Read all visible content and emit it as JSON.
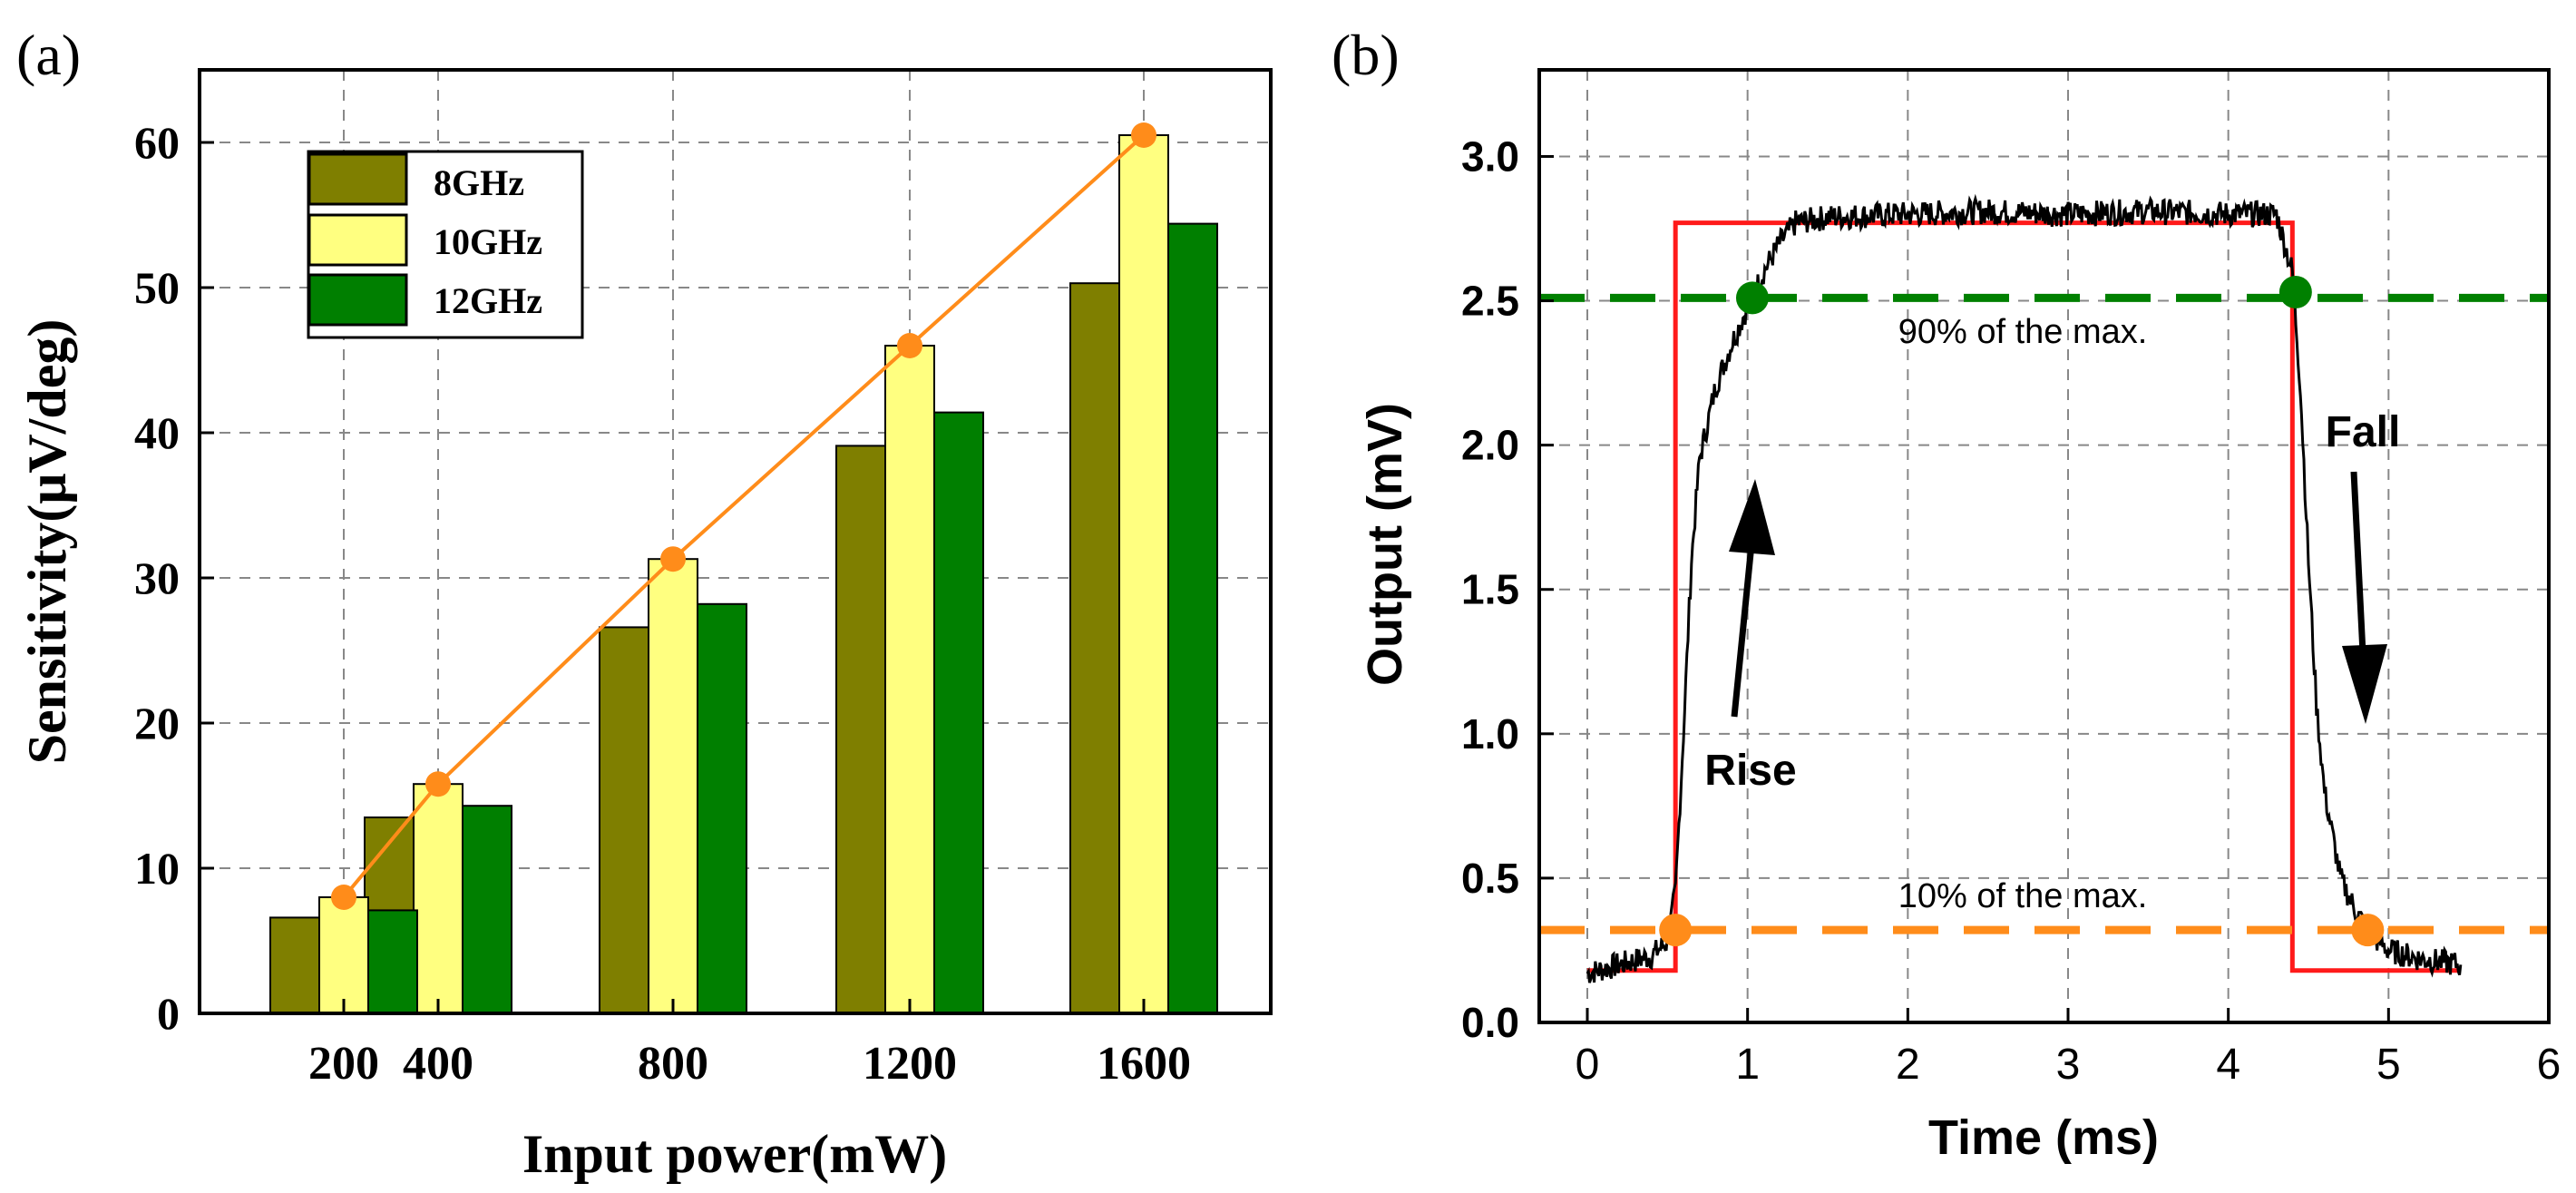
{
  "panel_a": {
    "label": "(a)",
    "legend_title": "",
    "legend": [
      "8GHz",
      "10GHz",
      "12GHz"
    ]
  },
  "panel_b": {
    "label": "(b)",
    "annotations": {
      "ninety": "90% of the max.",
      "ten": "10% of the max.",
      "rise": "Rise",
      "fall": "Fall"
    }
  },
  "colors": {
    "c8": "#7f7f00",
    "c10": "#ffff80",
    "c12": "#007f00",
    "trend": "#ff8c1a",
    "trace": "#000000",
    "step": "#ff1a1a",
    "green_ref": "#008000",
    "orange_ref": "#ff8c1a"
  },
  "chart_data": [
    {
      "type": "bar",
      "title": "",
      "xlabel": "Input power(mW)",
      "ylabel": "Sensitivity(μV/deg)",
      "categories": [
        "200",
        "400",
        "800",
        "1200",
        "1600"
      ],
      "ylim": [
        0,
        65
      ],
      "yticks": [
        0,
        10,
        20,
        30,
        40,
        50,
        60
      ],
      "grid": true,
      "legend_position": "top-left",
      "series": [
        {
          "name": "8GHz",
          "values": [
            6.6,
            13.5,
            26.6,
            39.1,
            50.3
          ]
        },
        {
          "name": "10GHz",
          "values": [
            8.0,
            15.8,
            31.3,
            46.0,
            60.5
          ]
        },
        {
          "name": "12GHz",
          "values": [
            7.1,
            14.3,
            28.2,
            41.4,
            54.4
          ]
        }
      ],
      "trend_line": {
        "series": "10GHz",
        "values": [
          8.0,
          15.8,
          31.3,
          46.0,
          60.5
        ]
      }
    },
    {
      "type": "line",
      "title": "",
      "xlabel": "Time (ms)",
      "ylabel": "Output (mV)",
      "xlim": [
        -0.3,
        6
      ],
      "ylim": [
        0,
        3.3
      ],
      "xticks": [
        0,
        1,
        2,
        3,
        4,
        5,
        6
      ],
      "yticks": [
        0.0,
        0.5,
        1.0,
        1.5,
        2.0,
        2.5,
        3.0
      ],
      "grid": true,
      "series": [
        {
          "name": "",
          "x": [
            0.0,
            0.2,
            0.4,
            0.5,
            0.55,
            0.6,
            0.65,
            0.7,
            0.8,
            0.9,
            1.0,
            1.1,
            1.2,
            1.3,
            1.5,
            2.0,
            2.5,
            3.0,
            3.5,
            4.0,
            4.3,
            4.4,
            4.45,
            4.5,
            4.55,
            4.6,
            4.7,
            4.8,
            4.9,
            5.0,
            5.2,
            5.45
          ],
          "y": [
            0.17,
            0.2,
            0.23,
            0.28,
            0.45,
            1.0,
            1.6,
            1.95,
            2.2,
            2.35,
            2.48,
            2.6,
            2.7,
            2.77,
            2.79,
            2.8,
            2.81,
            2.8,
            2.81,
            2.8,
            2.8,
            2.6,
            2.2,
            1.6,
            1.1,
            0.8,
            0.5,
            0.38,
            0.3,
            0.25,
            0.22,
            0.2
          ]
        },
        {
          "name": "",
          "x": [
            0.0,
            0.55,
            0.55,
            4.4,
            4.4,
            5.45
          ],
          "y": [
            0.18,
            0.18,
            2.77,
            2.77,
            0.18,
            0.18
          ]
        }
      ],
      "reference_lines": [
        {
          "label": "90% of the max.",
          "y": 2.51
        },
        {
          "label": "10% of the max.",
          "y": 0.32
        }
      ],
      "markers": [
        {
          "x": 1.03,
          "y": 2.51
        },
        {
          "x": 4.42,
          "y": 2.53
        },
        {
          "x": 0.55,
          "y": 0.32
        },
        {
          "x": 4.87,
          "y": 0.32
        }
      ]
    }
  ]
}
